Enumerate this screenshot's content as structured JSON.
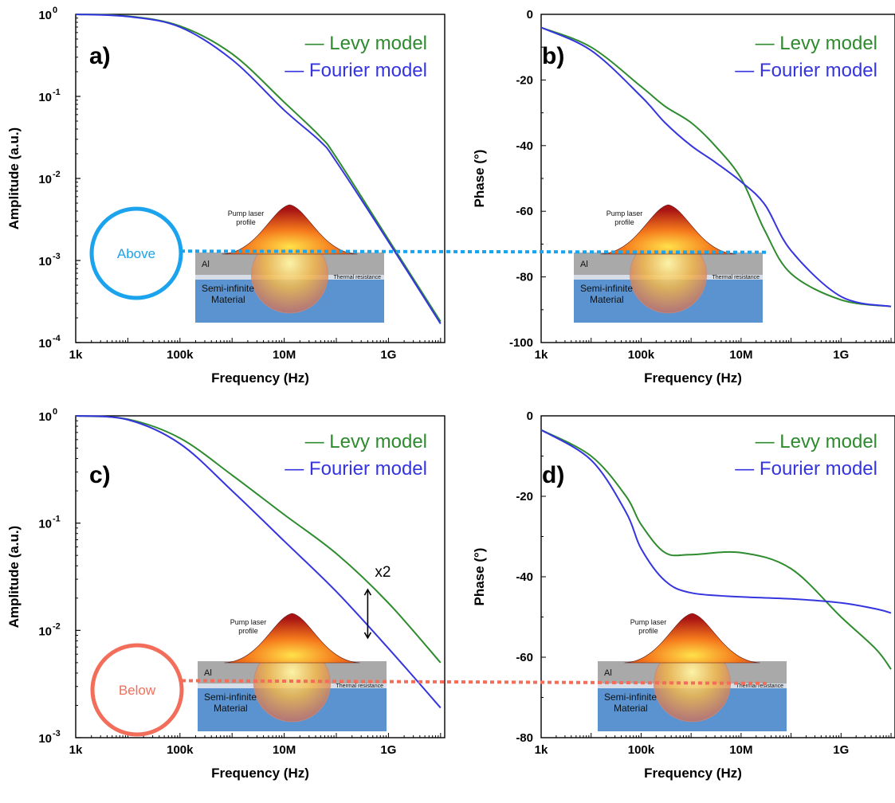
{
  "colors": {
    "levy": "#2e8b2e",
    "fourier": "#3535e0",
    "above": "#1ba3ee",
    "below": "#f26e5a",
    "inset_al": "#a9a9a9",
    "inset_substrate": "#5a93cf",
    "inset_interface": "#d6dde6"
  },
  "inset": {
    "pump_label": "Pump laser profile",
    "pump_label_line1": "Pump laser",
    "pump_label_line2": "profile",
    "al_label": "Al",
    "thermal_label": "Thermal resistance",
    "substrate_line1": "Semi-infinite",
    "substrate_line2": "Material"
  },
  "markers": {
    "above_label": "Above",
    "below_label": "Below"
  },
  "chart_data": [
    {
      "panel": "a)",
      "type": "line",
      "xlabel": "Frequency (Hz)",
      "ylabel": "Amplitude (a.u.)",
      "xscale": "log",
      "yscale": "log",
      "xlim": [
        1000,
        12000000000
      ],
      "ylim": [
        0.0001,
        1
      ],
      "xticks": [
        {
          "v": 1000,
          "label": "1k"
        },
        {
          "v": 100000,
          "label": "100k"
        },
        {
          "v": 10000000,
          "label": "10M"
        },
        {
          "v": 1000000000,
          "label": "1G"
        }
      ],
      "yticks": [
        {
          "v": 1,
          "exp": "0"
        },
        {
          "v": 0.1,
          "exp": "-1"
        },
        {
          "v": 0.01,
          "exp": "-2"
        },
        {
          "v": 0.001,
          "exp": "-3"
        },
        {
          "v": 0.0001,
          "exp": "-4"
        }
      ],
      "legend": [
        "— Levy model",
        "— Fourier model"
      ],
      "series": [
        {
          "name": "Levy model",
          "color_key": "levy",
          "x": [
            1000,
            10000,
            100000,
            1000000,
            10000000,
            50000000,
            100000000,
            1000000000,
            10000000000
          ],
          "y": [
            1.0,
            0.95,
            0.72,
            0.33,
            0.085,
            0.032,
            0.018,
            0.0018,
            0.00018
          ]
        },
        {
          "name": "Fourier model",
          "color_key": "fourier",
          "x": [
            1000,
            10000,
            100000,
            1000000,
            10000000,
            50000000,
            100000000,
            1000000000,
            10000000000
          ],
          "y": [
            1.0,
            0.94,
            0.7,
            0.28,
            0.068,
            0.028,
            0.016,
            0.0017,
            0.00017
          ]
        }
      ],
      "reference_line": {
        "marker": "above",
        "value": 0.0013
      }
    },
    {
      "panel": "b)",
      "type": "line",
      "xlabel": "Frequency (Hz)",
      "ylabel": "Phase (°)",
      "xscale": "log",
      "yscale": "linear",
      "xlim": [
        1000,
        12000000000
      ],
      "ylim": [
        -100,
        0
      ],
      "xticks": [
        {
          "v": 1000,
          "label": "1k"
        },
        {
          "v": 100000,
          "label": "100k"
        },
        {
          "v": 10000000,
          "label": "10M"
        },
        {
          "v": 1000000000,
          "label": "1G"
        }
      ],
      "yticks": [
        {
          "v": 0,
          "label": "0"
        },
        {
          "v": -20,
          "label": "-20"
        },
        {
          "v": -40,
          "label": "-40"
        },
        {
          "v": -60,
          "label": "-60"
        },
        {
          "v": -80,
          "label": "-80"
        },
        {
          "v": -100,
          "label": "-100"
        }
      ],
      "legend": [
        "— Levy model",
        "— Fourier model"
      ],
      "series": [
        {
          "name": "Levy model",
          "color_key": "levy",
          "x": [
            1000,
            10000,
            100000,
            300000,
            1000000,
            3000000,
            10000000,
            30000000,
            100000000,
            1000000000,
            10000000000
          ],
          "y": [
            -4,
            -10,
            -22,
            -28,
            -33,
            -40,
            -50,
            -66,
            -79,
            -87,
            -89
          ]
        },
        {
          "name": "Fourier model",
          "color_key": "fourier",
          "x": [
            1000,
            10000,
            100000,
            300000,
            1000000,
            3000000,
            10000000,
            30000000,
            100000000,
            1000000000,
            10000000000
          ],
          "y": [
            -4,
            -11,
            -25,
            -33,
            -40,
            -45,
            -51,
            -58,
            -72,
            -86,
            -89
          ]
        }
      ],
      "reference_line": {
        "marker": "above",
        "value": -72.5
      }
    },
    {
      "panel": "c)",
      "type": "line",
      "xlabel": "Frequency (Hz)",
      "ylabel": "Amplitude (a.u.)",
      "xscale": "log",
      "yscale": "log",
      "xlim": [
        1000,
        12000000000
      ],
      "ylim": [
        0.001,
        1
      ],
      "xticks": [
        {
          "v": 1000,
          "label": "1k"
        },
        {
          "v": 100000,
          "label": "100k"
        },
        {
          "v": 10000000,
          "label": "10M"
        },
        {
          "v": 1000000000,
          "label": "1G"
        }
      ],
      "yticks": [
        {
          "v": 1,
          "exp": "0"
        },
        {
          "v": 0.1,
          "exp": "-1"
        },
        {
          "v": 0.01,
          "exp": "-2"
        },
        {
          "v": 0.001,
          "exp": "-3"
        }
      ],
      "legend": [
        "— Levy model",
        "— Fourier model"
      ],
      "series": [
        {
          "name": "Levy model",
          "color_key": "levy",
          "x": [
            1000,
            10000,
            100000,
            1000000,
            10000000,
            100000000,
            1000000000,
            10000000000
          ],
          "y": [
            1.0,
            0.93,
            0.62,
            0.28,
            0.12,
            0.052,
            0.018,
            0.005
          ]
        },
        {
          "name": "Fourier model",
          "color_key": "fourier",
          "x": [
            1000,
            10000,
            100000,
            1000000,
            10000000,
            100000000,
            1000000000,
            10000000000
          ],
          "y": [
            1.0,
            0.92,
            0.55,
            0.2,
            0.068,
            0.023,
            0.0068,
            0.0019
          ]
        }
      ],
      "annotation": {
        "text": "x2",
        "x": 400000000,
        "y_top": 0.024,
        "y_bottom": 0.0085
      },
      "reference_line": {
        "marker": "below",
        "value": 0.0034
      }
    },
    {
      "panel": "d)",
      "type": "line",
      "xlabel": "Frequency (Hz)",
      "ylabel": "Phase (°)",
      "xscale": "log",
      "yscale": "linear",
      "xlim": [
        1000,
        12000000000
      ],
      "ylim": [
        -80,
        0
      ],
      "xticks": [
        {
          "v": 1000,
          "label": "1k"
        },
        {
          "v": 100000,
          "label": "100k"
        },
        {
          "v": 10000000,
          "label": "10M"
        },
        {
          "v": 1000000000,
          "label": "1G"
        }
      ],
      "yticks": [
        {
          "v": 0,
          "label": "0"
        },
        {
          "v": -20,
          "label": "-20"
        },
        {
          "v": -40,
          "label": "-40"
        },
        {
          "v": -60,
          "label": "-60"
        },
        {
          "v": -80,
          "label": "-80"
        }
      ],
      "legend": [
        "— Levy model",
        "— Fourier model"
      ],
      "series": [
        {
          "name": "Levy model",
          "color_key": "levy",
          "x": [
            1000,
            10000,
            50000,
            100000,
            300000,
            1000000,
            10000000,
            100000000,
            1000000000,
            5000000000,
            10000000000
          ],
          "y": [
            -3.5,
            -10,
            -20,
            -27,
            -34,
            -34.5,
            -34,
            -38,
            -50,
            -58,
            -63
          ]
        },
        {
          "name": "Fourier model",
          "color_key": "fourier",
          "x": [
            1000,
            10000,
            50000,
            100000,
            300000,
            1000000,
            10000000,
            100000000,
            1000000000,
            5000000000,
            10000000000
          ],
          "y": [
            -3.5,
            -11,
            -24,
            -33,
            -41,
            -44,
            -45,
            -45.5,
            -46.5,
            -48,
            -49
          ]
        }
      ],
      "reference_line": {
        "marker": "below",
        "value": -66.5
      }
    }
  ]
}
